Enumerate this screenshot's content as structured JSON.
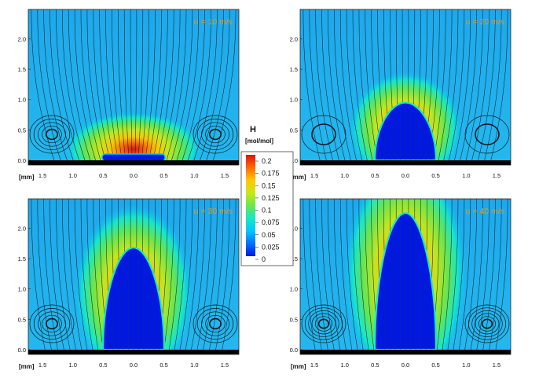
{
  "panels": [
    {
      "velocity_label": "u = 10 m/s",
      "flame_height_mm": 0.08,
      "vortex_strength": 0.85
    },
    {
      "velocity_label": "u = 20 m/s",
      "flame_height_mm": 0.95,
      "vortex_strength": 0.35
    },
    {
      "velocity_label": "u = 30 m/s",
      "flame_height_mm": 1.68,
      "vortex_strength": 0.9
    },
    {
      "velocity_label": "u = 40 m/s",
      "flame_height_mm": 2.25,
      "vortex_strength": 1.0
    }
  ],
  "axes": {
    "x_unit": "[mm]",
    "x_ticks": [
      "1.5",
      "1.0",
      "0.5",
      "0.0",
      "0.5",
      "1.0",
      "1.5"
    ],
    "y_ticks": [
      "0.0",
      "0.5",
      "1.0",
      "1.5",
      "2.0"
    ]
  },
  "colorbar": {
    "title": "H",
    "unit": "[mol/mol]",
    "labels": [
      "0.2",
      "0.175",
      "0.15",
      "0.125",
      "0.1",
      "0.075",
      "0.05",
      "0.025",
      "0"
    ],
    "colors": [
      "#0018e0",
      "#0070ff",
      "#00c8ff",
      "#18e8c8",
      "#6ae84a",
      "#c8e818",
      "#ffc800",
      "#ff6a00",
      "#e01010"
    ]
  }
}
